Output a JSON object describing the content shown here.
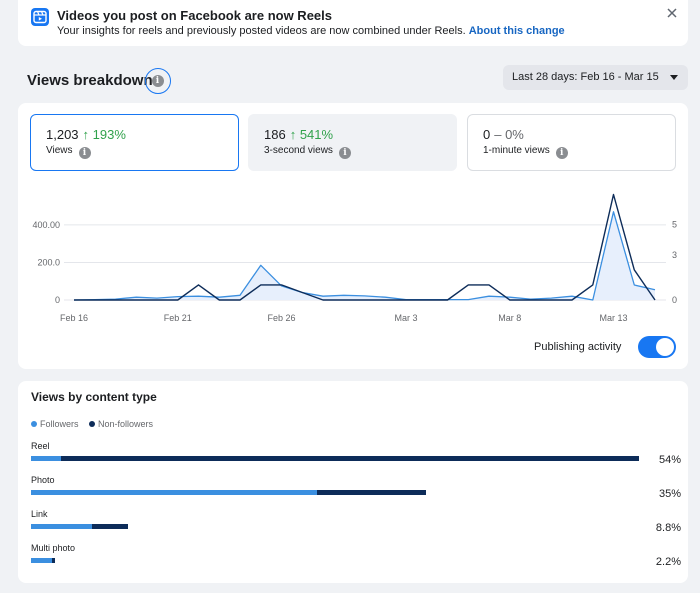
{
  "notice": {
    "title": "Videos you post on Facebook are now Reels",
    "body": "Your insights for reels and previously posted videos are now combined under Reels.",
    "link": "About this change"
  },
  "breakdown": {
    "title": "Views breakdown",
    "date_range": "Last 28 days: Feb 16 - Mar 15"
  },
  "metrics": [
    {
      "value": "1,203",
      "change": "↑ 193%",
      "label": "Views",
      "trend": "up"
    },
    {
      "value": "186",
      "change": "↑ 541%",
      "label": "3-second views",
      "trend": "up"
    },
    {
      "value": "0",
      "change": "– 0%",
      "label": "1-minute views",
      "trend": "flat"
    }
  ],
  "publishing_activity_label": "Publishing activity",
  "publishing_activity_on": true,
  "chart_data": {
    "type": "line",
    "x": [
      "Feb 16",
      "Feb 17",
      "Feb 18",
      "Feb 19",
      "Feb 20",
      "Feb 21",
      "Feb 22",
      "Feb 23",
      "Feb 24",
      "Feb 25",
      "Feb 26",
      "Feb 27",
      "Feb 28",
      "Feb 29",
      "Mar 1",
      "Mar 2",
      "Mar 3",
      "Mar 4",
      "Mar 5",
      "Mar 6",
      "Mar 7",
      "Mar 8",
      "Mar 9",
      "Mar 10",
      "Mar 11",
      "Mar 12",
      "Mar 13",
      "Mar 14",
      "Mar 15"
    ],
    "x_tick_labels": [
      "Feb 16",
      "Feb 21",
      "Feb 26",
      "Mar 3",
      "Mar 8",
      "Mar 13"
    ],
    "left_axis_ticks": [
      "0",
      "200.0",
      "400.00"
    ],
    "right_axis_ticks": [
      "0",
      "3",
      "5"
    ],
    "ylim_left": [
      0,
      570
    ],
    "ylim_right": [
      0,
      7.1
    ],
    "series": [
      {
        "axis": "left",
        "color": "#3b8fe0",
        "fill": "#e7effc",
        "values": [
          0,
          2,
          5,
          15,
          10,
          18,
          20,
          15,
          25,
          185,
          75,
          40,
          20,
          25,
          22,
          15,
          2,
          2,
          2,
          2,
          20,
          15,
          5,
          10,
          20,
          0,
          470,
          80,
          55
        ]
      },
      {
        "axis": "right",
        "color": "#0d2c59",
        "values": [
          0,
          0,
          0,
          0,
          0,
          0,
          1,
          0,
          0,
          1,
          1,
          0.5,
          0,
          0,
          0,
          0,
          0,
          0,
          0,
          1,
          1,
          0,
          0,
          0,
          0,
          1,
          7,
          2,
          0
        ]
      }
    ]
  },
  "content_type": {
    "title": "Views by content type",
    "legend": [
      {
        "label": "Followers",
        "color": "#3b8fe0"
      },
      {
        "label": "Non-followers",
        "color": "#0d2c59"
      }
    ],
    "rows": [
      {
        "label": "Reel",
        "pct_text": "54%",
        "followers": 0.05,
        "total": 1.0
      },
      {
        "label": "Photo",
        "pct_text": "35%",
        "followers": 0.47,
        "total": 0.65
      },
      {
        "label": "Link",
        "pct_text": "8.8%",
        "followers": 0.1,
        "total": 0.16
      },
      {
        "label": "Multi photo",
        "pct_text": "2.2%",
        "followers": 0.035,
        "total": 0.04
      }
    ]
  }
}
